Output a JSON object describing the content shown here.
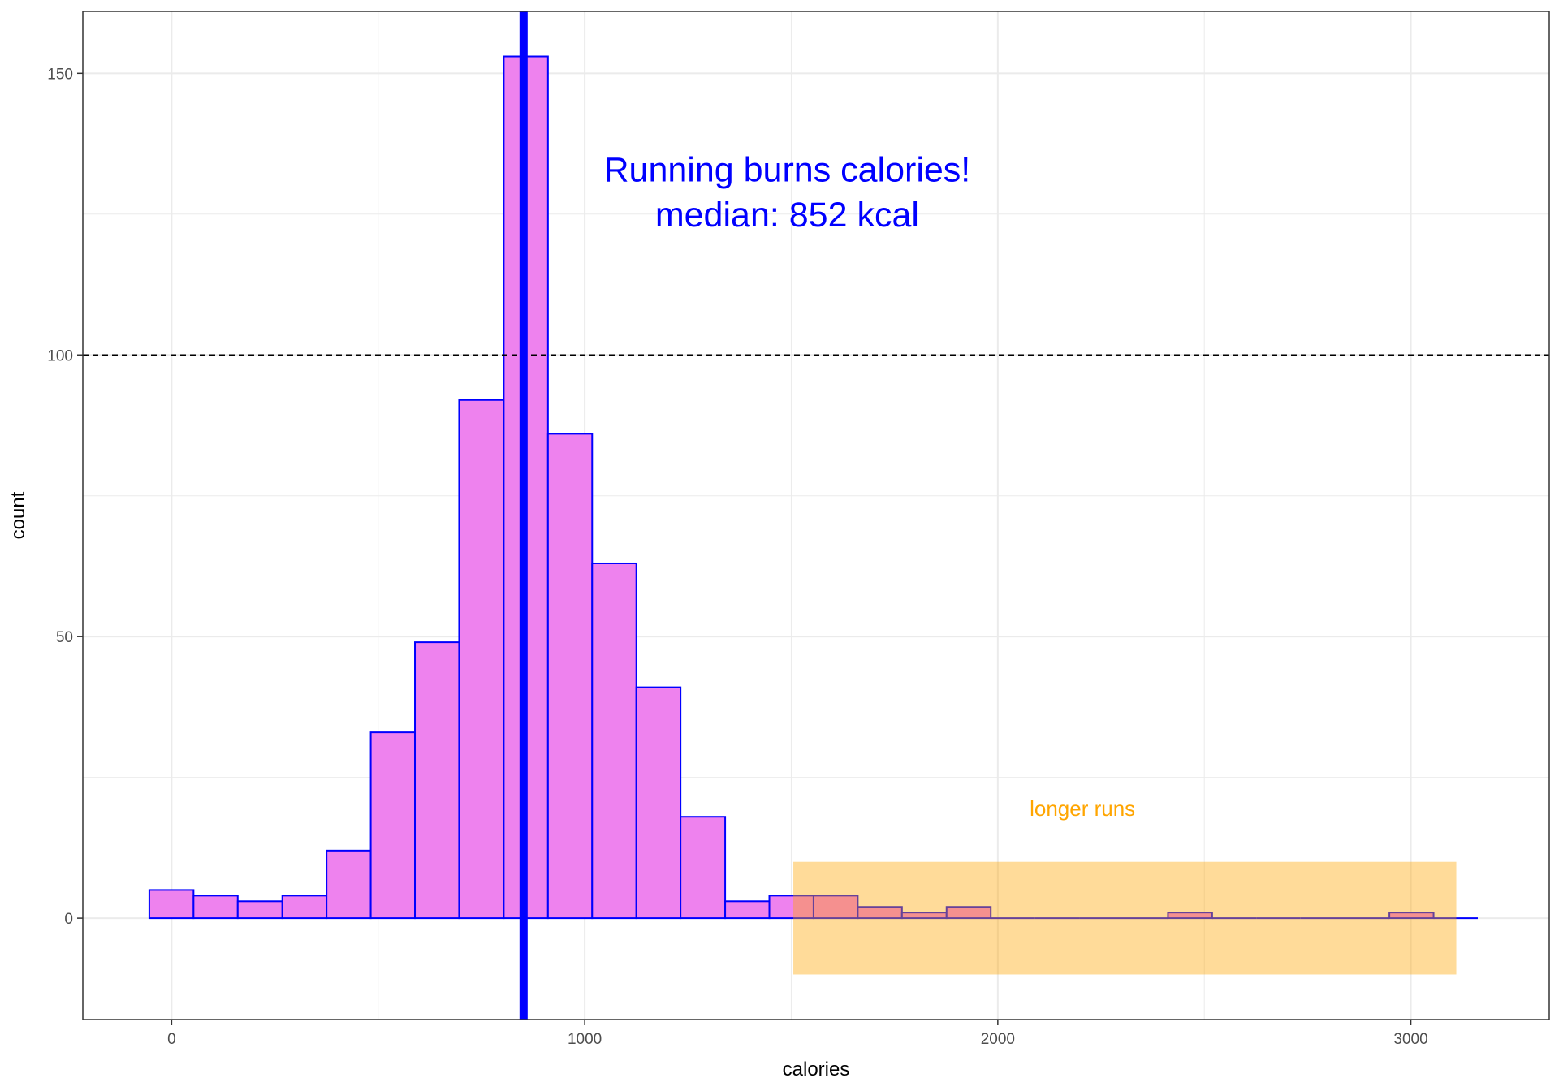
{
  "chart_data": {
    "type": "bar",
    "title": "",
    "xlabel": "calories",
    "ylabel": "count",
    "xlim": [
      -215,
      3335
    ],
    "ylim": [
      -18,
      161
    ],
    "x_ticks": [
      0,
      1000,
      2000,
      3000
    ],
    "y_ticks": [
      0,
      50,
      100,
      150
    ],
    "x_minor": [
      500,
      1500,
      2500
    ],
    "y_minor": [
      25,
      75,
      125
    ],
    "grid": true,
    "bin_width": 107,
    "bins": [
      {
        "x0": -54,
        "x1": 53,
        "count": 5
      },
      {
        "x0": 53,
        "x1": 160,
        "count": 4
      },
      {
        "x0": 160,
        "x1": 268,
        "count": 3
      },
      {
        "x0": 268,
        "x1": 375,
        "count": 4
      },
      {
        "x0": 375,
        "x1": 482,
        "count": 12
      },
      {
        "x0": 482,
        "x1": 589,
        "count": 33
      },
      {
        "x0": 589,
        "x1": 696,
        "count": 49
      },
      {
        "x0": 696,
        "x1": 804,
        "count": 92
      },
      {
        "x0": 804,
        "x1": 911,
        "count": 153
      },
      {
        "x0": 911,
        "x1": 1018,
        "count": 86
      },
      {
        "x0": 1018,
        "x1": 1125,
        "count": 63
      },
      {
        "x0": 1125,
        "x1": 1232,
        "count": 41
      },
      {
        "x0": 1232,
        "x1": 1340,
        "count": 18
      },
      {
        "x0": 1340,
        "x1": 1447,
        "count": 3
      },
      {
        "x0": 1447,
        "x1": 1554,
        "count": 4
      },
      {
        "x0": 1554,
        "x1": 1661,
        "count": 4
      },
      {
        "x0": 1661,
        "x1": 1768,
        "count": 2
      },
      {
        "x0": 1768,
        "x1": 1876,
        "count": 1
      },
      {
        "x0": 1876,
        "x1": 1983,
        "count": 2
      },
      {
        "x0": 1983,
        "x1": 2090,
        "count": 0
      },
      {
        "x0": 2090,
        "x1": 2197,
        "count": 0
      },
      {
        "x0": 2197,
        "x1": 2304,
        "count": 0
      },
      {
        "x0": 2304,
        "x1": 2412,
        "count": 0
      },
      {
        "x0": 2412,
        "x1": 2519,
        "count": 1
      },
      {
        "x0": 2519,
        "x1": 2626,
        "count": 0
      },
      {
        "x0": 2626,
        "x1": 2733,
        "count": 0
      },
      {
        "x0": 2733,
        "x1": 2840,
        "count": 0
      },
      {
        "x0": 2840,
        "x1": 2948,
        "count": 0
      },
      {
        "x0": 2948,
        "x1": 3055,
        "count": 1
      },
      {
        "x0": 3055,
        "x1": 3162,
        "count": 0
      }
    ],
    "median": 852,
    "reference_line_y": 100,
    "highlight_rect": {
      "x0": 1505,
      "x1": 3110,
      "y0": -10,
      "y1": 10
    },
    "annotations": [
      {
        "id": "headline",
        "text": "Running burns calories!",
        "x": 1490,
        "y": 133
      },
      {
        "id": "median_text",
        "text": "median: 852 kcal",
        "x": 1490,
        "y": 125
      },
      {
        "id": "longer_runs",
        "text": "longer runs",
        "x": 2205,
        "y": 19.5
      }
    ],
    "colors": {
      "bar_fill": "#ee82ee",
      "bar_stroke": "#0000ff",
      "median_line": "#0000ff",
      "reference_line": "#000000",
      "highlight_fill": "#ffa500",
      "highlight_opacity": 0.4,
      "headline_text": "#0000ff",
      "longer_runs_text": "#ffa500",
      "grid": "#ebebeb",
      "panel_border": "#333333"
    }
  }
}
